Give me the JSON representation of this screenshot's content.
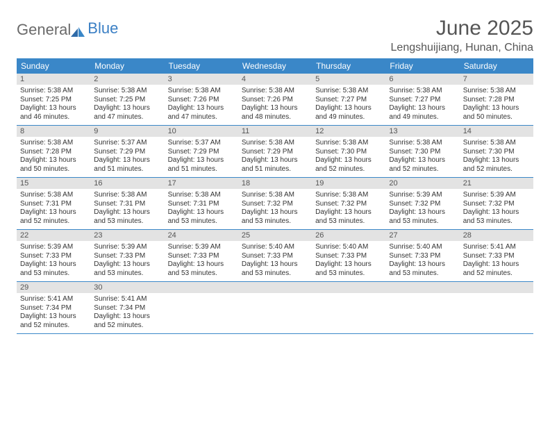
{
  "logo": {
    "part1": "General",
    "part2": "Blue"
  },
  "title": "June 2025",
  "location": "Lengshuijiang, Hunan, China",
  "colors": {
    "header_bg": "#3a87c8",
    "daynum_bg": "#e3e3e3",
    "rule": "#3a87c8",
    "text": "#333333",
    "title_text": "#555555",
    "logo_gray": "#6a6a6a",
    "logo_blue": "#3a7fc4",
    "page_bg": "#ffffff"
  },
  "daysOfWeek": [
    "Sunday",
    "Monday",
    "Tuesday",
    "Wednesday",
    "Thursday",
    "Friday",
    "Saturday"
  ],
  "weeks": [
    [
      {
        "n": "1",
        "sr": "Sunrise: 5:38 AM",
        "ss": "Sunset: 7:25 PM",
        "d1": "Daylight: 13 hours",
        "d2": "and 46 minutes."
      },
      {
        "n": "2",
        "sr": "Sunrise: 5:38 AM",
        "ss": "Sunset: 7:25 PM",
        "d1": "Daylight: 13 hours",
        "d2": "and 47 minutes."
      },
      {
        "n": "3",
        "sr": "Sunrise: 5:38 AM",
        "ss": "Sunset: 7:26 PM",
        "d1": "Daylight: 13 hours",
        "d2": "and 47 minutes."
      },
      {
        "n": "4",
        "sr": "Sunrise: 5:38 AM",
        "ss": "Sunset: 7:26 PM",
        "d1": "Daylight: 13 hours",
        "d2": "and 48 minutes."
      },
      {
        "n": "5",
        "sr": "Sunrise: 5:38 AM",
        "ss": "Sunset: 7:27 PM",
        "d1": "Daylight: 13 hours",
        "d2": "and 49 minutes."
      },
      {
        "n": "6",
        "sr": "Sunrise: 5:38 AM",
        "ss": "Sunset: 7:27 PM",
        "d1": "Daylight: 13 hours",
        "d2": "and 49 minutes."
      },
      {
        "n": "7",
        "sr": "Sunrise: 5:38 AM",
        "ss": "Sunset: 7:28 PM",
        "d1": "Daylight: 13 hours",
        "d2": "and 50 minutes."
      }
    ],
    [
      {
        "n": "8",
        "sr": "Sunrise: 5:38 AM",
        "ss": "Sunset: 7:28 PM",
        "d1": "Daylight: 13 hours",
        "d2": "and 50 minutes."
      },
      {
        "n": "9",
        "sr": "Sunrise: 5:37 AM",
        "ss": "Sunset: 7:29 PM",
        "d1": "Daylight: 13 hours",
        "d2": "and 51 minutes."
      },
      {
        "n": "10",
        "sr": "Sunrise: 5:37 AM",
        "ss": "Sunset: 7:29 PM",
        "d1": "Daylight: 13 hours",
        "d2": "and 51 minutes."
      },
      {
        "n": "11",
        "sr": "Sunrise: 5:38 AM",
        "ss": "Sunset: 7:29 PM",
        "d1": "Daylight: 13 hours",
        "d2": "and 51 minutes."
      },
      {
        "n": "12",
        "sr": "Sunrise: 5:38 AM",
        "ss": "Sunset: 7:30 PM",
        "d1": "Daylight: 13 hours",
        "d2": "and 52 minutes."
      },
      {
        "n": "13",
        "sr": "Sunrise: 5:38 AM",
        "ss": "Sunset: 7:30 PM",
        "d1": "Daylight: 13 hours",
        "d2": "and 52 minutes."
      },
      {
        "n": "14",
        "sr": "Sunrise: 5:38 AM",
        "ss": "Sunset: 7:30 PM",
        "d1": "Daylight: 13 hours",
        "d2": "and 52 minutes."
      }
    ],
    [
      {
        "n": "15",
        "sr": "Sunrise: 5:38 AM",
        "ss": "Sunset: 7:31 PM",
        "d1": "Daylight: 13 hours",
        "d2": "and 52 minutes."
      },
      {
        "n": "16",
        "sr": "Sunrise: 5:38 AM",
        "ss": "Sunset: 7:31 PM",
        "d1": "Daylight: 13 hours",
        "d2": "and 53 minutes."
      },
      {
        "n": "17",
        "sr": "Sunrise: 5:38 AM",
        "ss": "Sunset: 7:31 PM",
        "d1": "Daylight: 13 hours",
        "d2": "and 53 minutes."
      },
      {
        "n": "18",
        "sr": "Sunrise: 5:38 AM",
        "ss": "Sunset: 7:32 PM",
        "d1": "Daylight: 13 hours",
        "d2": "and 53 minutes."
      },
      {
        "n": "19",
        "sr": "Sunrise: 5:38 AM",
        "ss": "Sunset: 7:32 PM",
        "d1": "Daylight: 13 hours",
        "d2": "and 53 minutes."
      },
      {
        "n": "20",
        "sr": "Sunrise: 5:39 AM",
        "ss": "Sunset: 7:32 PM",
        "d1": "Daylight: 13 hours",
        "d2": "and 53 minutes."
      },
      {
        "n": "21",
        "sr": "Sunrise: 5:39 AM",
        "ss": "Sunset: 7:32 PM",
        "d1": "Daylight: 13 hours",
        "d2": "and 53 minutes."
      }
    ],
    [
      {
        "n": "22",
        "sr": "Sunrise: 5:39 AM",
        "ss": "Sunset: 7:33 PM",
        "d1": "Daylight: 13 hours",
        "d2": "and 53 minutes."
      },
      {
        "n": "23",
        "sr": "Sunrise: 5:39 AM",
        "ss": "Sunset: 7:33 PM",
        "d1": "Daylight: 13 hours",
        "d2": "and 53 minutes."
      },
      {
        "n": "24",
        "sr": "Sunrise: 5:39 AM",
        "ss": "Sunset: 7:33 PM",
        "d1": "Daylight: 13 hours",
        "d2": "and 53 minutes."
      },
      {
        "n": "25",
        "sr": "Sunrise: 5:40 AM",
        "ss": "Sunset: 7:33 PM",
        "d1": "Daylight: 13 hours",
        "d2": "and 53 minutes."
      },
      {
        "n": "26",
        "sr": "Sunrise: 5:40 AM",
        "ss": "Sunset: 7:33 PM",
        "d1": "Daylight: 13 hours",
        "d2": "and 53 minutes."
      },
      {
        "n": "27",
        "sr": "Sunrise: 5:40 AM",
        "ss": "Sunset: 7:33 PM",
        "d1": "Daylight: 13 hours",
        "d2": "and 53 minutes."
      },
      {
        "n": "28",
        "sr": "Sunrise: 5:41 AM",
        "ss": "Sunset: 7:33 PM",
        "d1": "Daylight: 13 hours",
        "d2": "and 52 minutes."
      }
    ],
    [
      {
        "n": "29",
        "sr": "Sunrise: 5:41 AM",
        "ss": "Sunset: 7:34 PM",
        "d1": "Daylight: 13 hours",
        "d2": "and 52 minutes."
      },
      {
        "n": "30",
        "sr": "Sunrise: 5:41 AM",
        "ss": "Sunset: 7:34 PM",
        "d1": "Daylight: 13 hours",
        "d2": "and 52 minutes."
      },
      {
        "n": "",
        "sr": "",
        "ss": "",
        "d1": "",
        "d2": "",
        "empty": true
      },
      {
        "n": "",
        "sr": "",
        "ss": "",
        "d1": "",
        "d2": "",
        "empty": true
      },
      {
        "n": "",
        "sr": "",
        "ss": "",
        "d1": "",
        "d2": "",
        "empty": true
      },
      {
        "n": "",
        "sr": "",
        "ss": "",
        "d1": "",
        "d2": "",
        "empty": true
      },
      {
        "n": "",
        "sr": "",
        "ss": "",
        "d1": "",
        "d2": "",
        "empty": true
      }
    ]
  ]
}
